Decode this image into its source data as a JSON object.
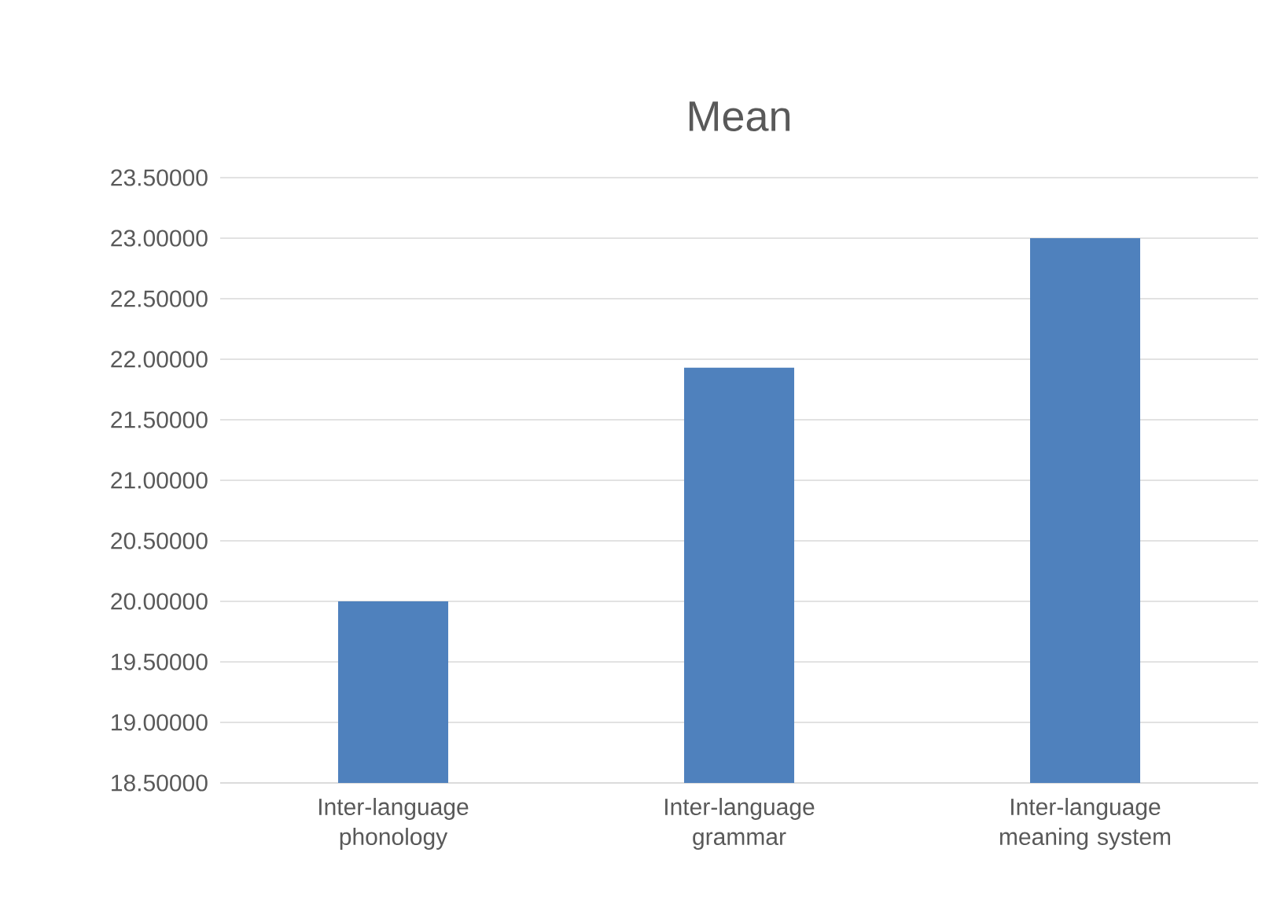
{
  "chart_data": {
    "type": "bar",
    "title": "Mean",
    "categories": [
      "Inter-language phonology",
      "Inter-language grammar",
      "Inter-language meaning system"
    ],
    "values": [
      20.0,
      21.93,
      23.0
    ],
    "color": "#4f81bd",
    "ylim": [
      18.5,
      23.5
    ],
    "yticks": [
      {
        "value": 18.5,
        "label": "18.50000"
      },
      {
        "value": 19.0,
        "label": "19.00000"
      },
      {
        "value": 19.5,
        "label": "19.50000"
      },
      {
        "value": 20.0,
        "label": "20.00000"
      },
      {
        "value": 20.5,
        "label": "20.50000"
      },
      {
        "value": 21.0,
        "label": "21.00000"
      },
      {
        "value": 21.5,
        "label": "21.50000"
      },
      {
        "value": 22.0,
        "label": "22.00000"
      },
      {
        "value": 22.5,
        "label": "22.50000"
      },
      {
        "value": 23.0,
        "label": "23.00000"
      },
      {
        "value": 23.5,
        "label": "23.50000"
      }
    ],
    "grid": "y"
  }
}
